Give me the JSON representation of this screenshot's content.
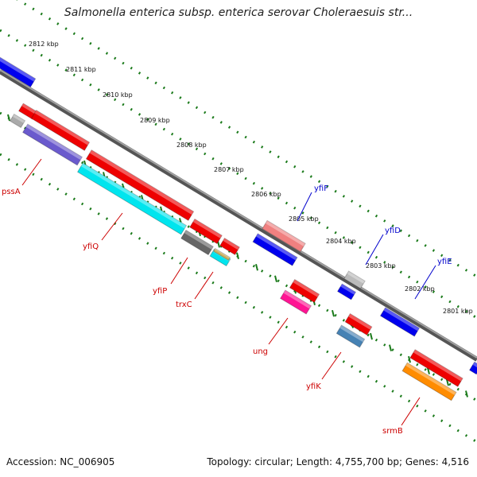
{
  "title": "Salmonella enterica subsp. enterica serovar Choleraesuis str...",
  "footer": {
    "accession": "Accession: NC_006905",
    "topology": "Topology: circular; Length: 4,755,700 bp; Genes: 4,516"
  },
  "scale_labels": [
    "2812 kbp",
    "2811 kbp",
    "2810 kbp",
    "2809 kbp",
    "2808 kbp",
    "2807 kbp",
    "2806 kbp",
    "2805 kbp",
    "2804 kbp",
    "2803 kbp",
    "2802 kbp",
    "2801 kbp"
  ],
  "genes_forward": [
    {
      "name": "yfiF",
      "color": "#0000cc"
    },
    {
      "name": "yfiD",
      "color": "#0000cc"
    },
    {
      "name": "yfiE",
      "color": "#0000cc"
    }
  ],
  "genes_reverse": [
    {
      "name": "pssA",
      "color": "#cc0000"
    },
    {
      "name": "yfiQ",
      "color": "#cc0000"
    },
    {
      "name": "yfiP",
      "color": "#cc0000"
    },
    {
      "name": "trxC",
      "color": "#cc0000"
    },
    {
      "name": "ung",
      "color": "#cc0000"
    },
    {
      "name": "yfiK",
      "color": "#cc0000"
    },
    {
      "name": "srmB",
      "color": "#cc0000"
    }
  ],
  "colors": {
    "backbone": "#808080",
    "tick": "#1a7a1a",
    "blue_feature": "#0000ee",
    "red_feature": "#ee0000"
  }
}
